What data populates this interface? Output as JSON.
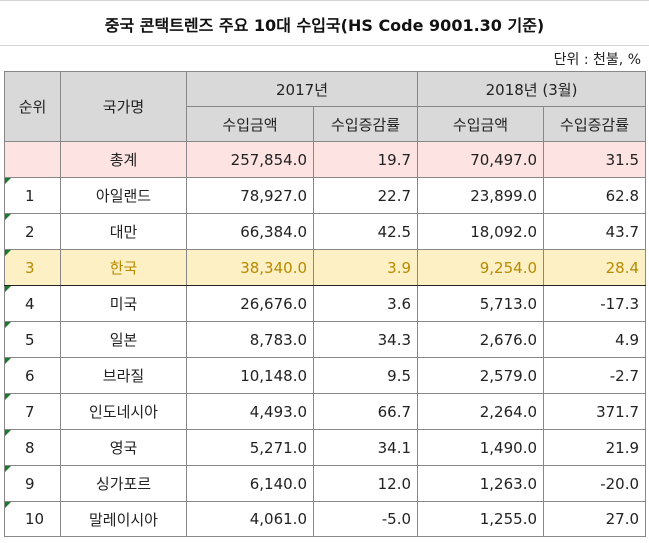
{
  "title": "중국 콘택트렌즈 주요 10대 수입국(HS Code 9001.30 기준)",
  "unit": "단위 : 천불, %",
  "headers": {
    "rank": "순위",
    "country": "국가명",
    "year1": "2017년",
    "year2": "2018년 (3월)",
    "amount1": "수입금액",
    "rate1": "수입증감률",
    "amount2": "수입금액",
    "rate2": "수입증감률"
  },
  "rows": [
    {
      "rank": "",
      "country": "총계",
      "amount2017": "257,854.0",
      "rate2017": "19.7",
      "amount2018": "70,497.0",
      "rate2018": "31.5"
    },
    {
      "rank": "1",
      "country": "아일랜드",
      "amount2017": "78,927.0",
      "rate2017": "22.7",
      "amount2018": "23,899.0",
      "rate2018": "62.8"
    },
    {
      "rank": "2",
      "country": "대만",
      "amount2017": "66,384.0",
      "rate2017": "42.5",
      "amount2018": "18,092.0",
      "rate2018": "43.7"
    },
    {
      "rank": "3",
      "country": "한국",
      "amount2017": "38,340.0",
      "rate2017": "3.9",
      "amount2018": "9,254.0",
      "rate2018": "28.4"
    },
    {
      "rank": "4",
      "country": "미국",
      "amount2017": "26,676.0",
      "rate2017": "3.6",
      "amount2018": "5,713.0",
      "rate2018": "-17.3"
    },
    {
      "rank": "5",
      "country": "일본",
      "amount2017": "8,783.0",
      "rate2017": "34.3",
      "amount2018": "2,676.0",
      "rate2018": "4.9"
    },
    {
      "rank": "6",
      "country": "브라질",
      "amount2017": "10,148.0",
      "rate2017": "9.5",
      "amount2018": "2,579.0",
      "rate2018": "-2.7"
    },
    {
      "rank": "7",
      "country": "인도네시아",
      "amount2017": "4,493.0",
      "rate2017": "66.7",
      "amount2018": "2,264.0",
      "rate2018": "371.7"
    },
    {
      "rank": "8",
      "country": "영국",
      "amount2017": "5,271.0",
      "rate2017": "34.1",
      "amount2018": "1,490.0",
      "rate2018": "21.9"
    },
    {
      "rank": "9",
      "country": "싱가포르",
      "amount2017": "6,140.0",
      "rate2017": "12.0",
      "amount2018": "1,263.0",
      "rate2018": "-20.0"
    },
    {
      "rank": "10",
      "country": "말레이시아",
      "amount2017": "4,061.0",
      "rate2017": "-5.0",
      "amount2018": "1,255.0",
      "rate2018": "27.0"
    }
  ],
  "colors": {
    "header_bg": "#d9d9d9",
    "total_bg": "#fde3e1",
    "highlight_bg": "#fdf0c4",
    "highlight_text": "#b88a00",
    "marker": "#1a7a2e"
  }
}
